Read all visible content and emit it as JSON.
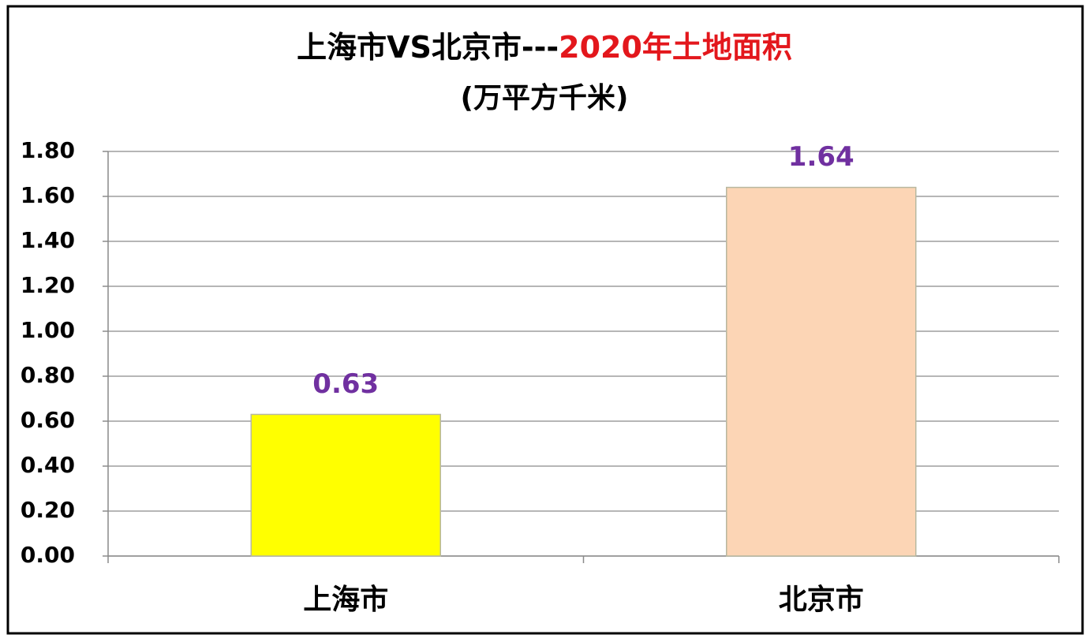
{
  "chart_data": {
    "type": "bar",
    "title": [
      {
        "text": "上海市VS北京市---",
        "color": "#000000"
      },
      {
        "text": "2020年土地面积",
        "color": "#e3171c"
      }
    ],
    "subtitle": "(万平方千米)",
    "categories": [
      "上海市",
      "北京市"
    ],
    "values": [
      0.63,
      1.64
    ],
    "colors": [
      "#ffff00",
      "#fcd5b5"
    ],
    "value_label_color": "#7030a0",
    "ylim": [
      0,
      1.8
    ],
    "yticks": [
      {
        "value": 0,
        "label": "0.00"
      },
      {
        "value": 0.2,
        "label": "0.20"
      },
      {
        "value": 0.4,
        "label": "0.40"
      },
      {
        "value": 0.6,
        "label": "0.60"
      },
      {
        "value": 0.8,
        "label": "0.80"
      },
      {
        "value": 1.0,
        "label": "1.00"
      },
      {
        "value": 1.2,
        "label": "1.20"
      },
      {
        "value": 1.4,
        "label": "1.40"
      },
      {
        "value": 1.6,
        "label": "1.60"
      },
      {
        "value": 1.8,
        "label": "1.80"
      }
    ],
    "grid": true
  }
}
